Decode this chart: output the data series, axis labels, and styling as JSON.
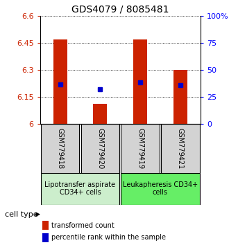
{
  "title": "GDS4079 / 8085481",
  "samples": [
    "GSM779418",
    "GSM779420",
    "GSM779419",
    "GSM779421"
  ],
  "red_values": [
    6.47,
    6.11,
    6.47,
    6.3
  ],
  "blue_values": [
    6.22,
    6.19,
    6.23,
    6.215
  ],
  "ylim": [
    6.0,
    6.6
  ],
  "y_ticks_left": [
    6.0,
    6.15,
    6.3,
    6.45,
    6.6
  ],
  "y_ticks_right_vals": [
    0,
    25,
    50,
    75,
    100
  ],
  "ytick_labels_left": [
    "6",
    "6.15",
    "6.3",
    "6.45",
    "6.6"
  ],
  "ytick_labels_right": [
    "0",
    "25",
    "50",
    "75",
    "100%"
  ],
  "group_labels": [
    "Lipotransfer aspirate\nCD34+ cells",
    "Leukapheresis CD34+\ncells"
  ],
  "group_color_left": "#cceecc",
  "group_color_right": "#66ee66",
  "bar_width": 0.35,
  "red_color": "#cc2200",
  "blue_color": "#0000cc",
  "sample_box_color": "#d3d3d3",
  "legend_red_label": "transformed count",
  "legend_blue_label": "percentile rank within the sample",
  "cell_type_label": "cell type",
  "title_fontsize": 10,
  "tick_fontsize": 8,
  "sample_fontsize": 7,
  "group_fontsize": 7,
  "legend_fontsize": 7
}
